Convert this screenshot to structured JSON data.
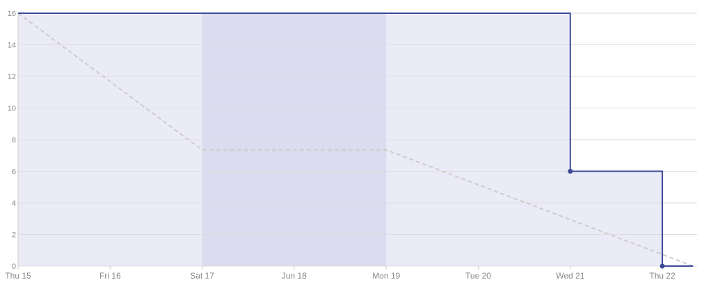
{
  "chart_data": {
    "type": "line",
    "title": "",
    "xlabel": "",
    "ylabel": "",
    "x_ticks": [
      "Thu 15",
      "Fri 16",
      "Sat 17",
      "Jun 18",
      "Mon 19",
      "Tue 20",
      "Wed 21",
      "Thu 22"
    ],
    "y_ticks": [
      "0",
      "2",
      "4",
      "6",
      "8",
      "10",
      "12",
      "14",
      "16"
    ],
    "ylim": [
      0,
      16
    ],
    "xlim": [
      "2017-06-15",
      "2017-06-22T08:00"
    ],
    "grid": true,
    "legend": "none",
    "weekend_band": {
      "start": "2017-06-17",
      "end": "2017-06-19"
    },
    "series": [
      {
        "style": "step",
        "color": "#3d4a97",
        "points": [
          {
            "x": "2017-06-15",
            "y": 16
          },
          {
            "x": "2017-06-21",
            "y": 16
          },
          {
            "x": "2017-06-21",
            "y": 6,
            "marker": true
          },
          {
            "x": "2017-06-22",
            "y": 6
          },
          {
            "x": "2017-06-22",
            "y": 0,
            "marker": true
          },
          {
            "x": "2017-06-22T08:00",
            "y": 0
          }
        ]
      },
      {
        "style": "dashed",
        "color": "#cccccc",
        "points": [
          {
            "x": "2017-06-15",
            "y": 16
          },
          {
            "x": "2017-06-17",
            "y": 7.35
          },
          {
            "x": "2017-06-19",
            "y": 7.35
          },
          {
            "x": "2017-06-22T08:00",
            "y": 0
          }
        ]
      }
    ],
    "colors": {
      "area_fill": "#ebebf7",
      "weekend_fill": "#dcdcf0",
      "gridline": "#dddddd",
      "axis": "#cccccc",
      "tick_text": "#888888"
    }
  }
}
